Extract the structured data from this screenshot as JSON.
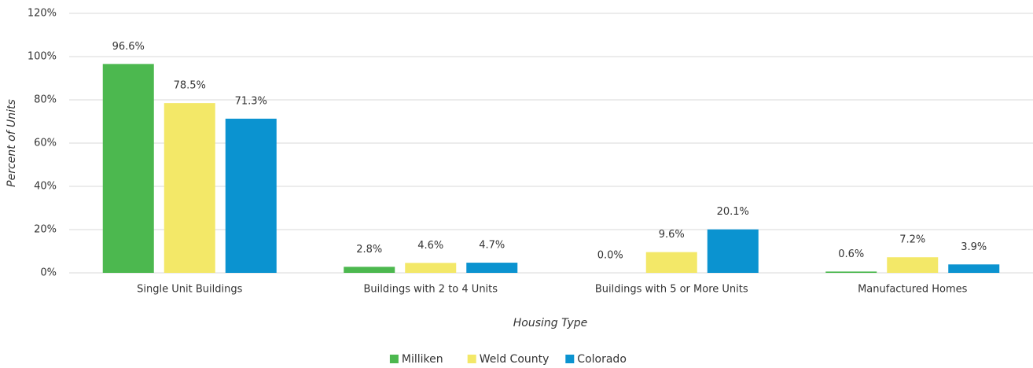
{
  "chart_data": {
    "type": "bar",
    "categories": [
      "Single Unit Buildings",
      "Buildings with 2 to 4 Units",
      "Buildings with 5 or More Units",
      "Manufactured Homes"
    ],
    "series": [
      {
        "name": "Milliken",
        "color": "#4cb84f",
        "values": [
          96.6,
          2.8,
          0.0,
          0.6
        ],
        "value_labels": [
          "96.6%",
          "2.8%",
          "0.0%",
          "0.6%"
        ]
      },
      {
        "name": "Weld County",
        "color": "#f3e868",
        "values": [
          78.5,
          4.6,
          9.6,
          7.2
        ],
        "value_labels": [
          "78.5%",
          "4.6%",
          "9.6%",
          "7.2%"
        ]
      },
      {
        "name": "Colorado",
        "color": "#0b93d0",
        "values": [
          71.3,
          4.7,
          20.1,
          3.9
        ],
        "value_labels": [
          "71.3%",
          "4.7%",
          "20.1%",
          "3.9%"
        ]
      }
    ],
    "xlabel": "Housing Type",
    "ylabel": "Percent of Units",
    "ylim": [
      0,
      120
    ],
    "yticks": [
      {
        "value": 0,
        "label": "0%"
      },
      {
        "value": 20,
        "label": "20%"
      },
      {
        "value": 40,
        "label": "40%"
      },
      {
        "value": 60,
        "label": "60%"
      },
      {
        "value": 80,
        "label": "80%"
      },
      {
        "value": 100,
        "label": "100%"
      },
      {
        "value": 120,
        "label": "120%"
      }
    ],
    "grid": true,
    "legend": "bottom"
  }
}
